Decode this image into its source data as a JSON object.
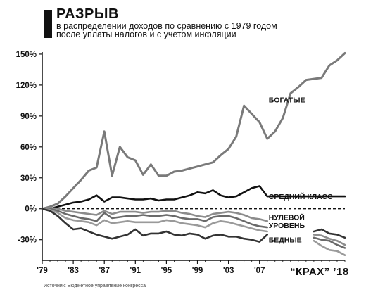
{
  "header": {
    "title": "РАЗРЫВ",
    "subtitle_line1": "в распределении доходов по сравнению с 1979 годом",
    "subtitle_line2": "после уплаты налогов и с учетом инфляции"
  },
  "footer": {
    "source": "Источник: Бюджетное управление конгресса",
    "brand": "“КРАХ” ’18"
  },
  "colors": {
    "axis": "#111111",
    "rich": "#7a7a7a",
    "middle": "#111111",
    "poor": "#333333",
    "gray1": "#8c8c8c",
    "gray2": "#6a6a6a",
    "gray3": "#9a9a9a"
  },
  "chart_data": {
    "type": "line",
    "x_ticks": [
      "'79",
      "'83",
      "'87",
      "'91",
      "'95",
      "'99",
      "'03",
      "'07"
    ],
    "x_tick_values": [
      1979,
      1983,
      1987,
      1991,
      1995,
      1999,
      2003,
      2007
    ],
    "xlim": [
      1979,
      2018
    ],
    "y_ticks": [
      "150%",
      "120%",
      "90%",
      "60%",
      "30%",
      "0%",
      "-30%"
    ],
    "y_tick_values": [
      150,
      120,
      90,
      60,
      30,
      0,
      -30
    ],
    "ylim": [
      -50,
      152
    ],
    "zero_line_label": "НУЛЕВОЙ УРОВЕНЬ",
    "series": [
      {
        "name": "БОГАТЫЕ",
        "color": "#7a7a7a",
        "x": [
          1979,
          1980,
          1981,
          1982,
          1983,
          1984,
          1985,
          1986,
          1987,
          1988,
          1989,
          1990,
          1991,
          1992,
          1993,
          1994,
          1995,
          1996,
          1997,
          1998,
          1999,
          2000,
          2001,
          2002,
          2003,
          2004,
          2005,
          2006,
          2007,
          2008,
          2009,
          2010,
          2011,
          2012,
          2013,
          2014,
          2015,
          2016,
          2017,
          2018
        ],
        "y": [
          0,
          2,
          5,
          12,
          20,
          28,
          37,
          40,
          75,
          32,
          60,
          50,
          47,
          33,
          43,
          32,
          32,
          36,
          37,
          39,
          41,
          43,
          45,
          52,
          58,
          70,
          100,
          92,
          84,
          68,
          75,
          88,
          112,
          118,
          125,
          126,
          127,
          139,
          144,
          151
        ]
      },
      {
        "name": "СРЕДНИЙ КЛАСС",
        "color": "#111111",
        "x": [
          1979,
          1980,
          1981,
          1982,
          1983,
          1984,
          1985,
          1986,
          1987,
          1988,
          1989,
          1990,
          1991,
          1992,
          1993,
          1994,
          1995,
          1996,
          1997,
          1998,
          1999,
          2000,
          2001,
          2002,
          2003,
          2004,
          2005,
          2006,
          2007,
          2008,
          2018
        ],
        "y": [
          0,
          0,
          2,
          4,
          6,
          7,
          9,
          13,
          7,
          11,
          11,
          10,
          9,
          9,
          10,
          8,
          9,
          9,
          11,
          13,
          16,
          15,
          18,
          13,
          11,
          12,
          16,
          20,
          22,
          12,
          12
        ]
      },
      {
        "name": "",
        "color": "#8c8c8c",
        "x": [
          1979,
          1980,
          1981,
          1982,
          1983,
          1984,
          1985,
          1986,
          1987,
          1988,
          1989,
          1990,
          1991,
          1992,
          1993,
          1994,
          1995,
          1996,
          1997,
          1998,
          1999,
          2000,
          2001,
          2002,
          2003,
          2004,
          2005,
          2006,
          2007,
          2008
        ],
        "y": [
          0,
          1,
          0,
          -2,
          -3,
          -4,
          -5,
          -6,
          -2,
          -5,
          -3,
          -3,
          -3,
          -4,
          -3,
          -3,
          -2,
          -2,
          -4,
          -5,
          -7,
          -8,
          -5,
          -4,
          -3,
          -4,
          -6,
          -9,
          -10,
          -12
        ]
      },
      {
        "name": "",
        "color": "#6a6a6a",
        "x": [
          1979,
          1980,
          1981,
          1982,
          1983,
          1984,
          1985,
          1986,
          1987,
          1988,
          1989,
          1990,
          1991,
          1992,
          1993,
          1994,
          1995,
          1996,
          1997,
          1998,
          1999,
          2000,
          2001,
          2002,
          2003,
          2004,
          2005,
          2006,
          2007,
          2008
        ],
        "y": [
          0,
          0,
          -2,
          -5,
          -7,
          -9,
          -10,
          -12,
          -4,
          -9,
          -8,
          -7,
          -7,
          -6,
          -7,
          -7,
          -6,
          -7,
          -9,
          -10,
          -10,
          -12,
          -8,
          -7,
          -7,
          -9,
          -12,
          -15,
          -17,
          -18
        ]
      },
      {
        "name": "",
        "color": "#9a9a9a",
        "x": [
          1979,
          1980,
          1981,
          1982,
          1983,
          1984,
          1985,
          1986,
          1987,
          1988,
          1989,
          1990,
          1991,
          1992,
          1993,
          1994,
          1995,
          1996,
          1997,
          1998,
          1999,
          2000,
          2001,
          2002,
          2003,
          2004,
          2005,
          2006,
          2007,
          2008
        ],
        "y": [
          0,
          -1,
          -4,
          -9,
          -11,
          -12,
          -13,
          -16,
          -11,
          -14,
          -13,
          -12,
          -13,
          -13,
          -13,
          -13,
          -11,
          -12,
          -14,
          -15,
          -16,
          -18,
          -14,
          -12,
          -13,
          -15,
          -17,
          -19,
          -21,
          -22
        ]
      },
      {
        "name": "БЕДНЫЕ",
        "color": "#333333",
        "x": [
          1979,
          1980,
          1981,
          1982,
          1983,
          1984,
          1985,
          1986,
          1987,
          1988,
          1989,
          1990,
          1991,
          1992,
          1993,
          1994,
          1995,
          1996,
          1997,
          1998,
          1999,
          2000,
          2001,
          2002,
          2003,
          2004,
          2005,
          2006,
          2007,
          2008
        ],
        "y": [
          0,
          -2,
          -7,
          -14,
          -20,
          -19,
          -22,
          -25,
          -27,
          -29,
          -27,
          -25,
          -20,
          -26,
          -24,
          -24,
          -22,
          -25,
          -26,
          -24,
          -25,
          -29,
          -26,
          -25,
          -27,
          -27,
          -29,
          -30,
          -32,
          -25
        ]
      },
      {
        "name": "",
        "color": "#333333",
        "x": [
          2014,
          2015,
          2016,
          2017,
          2018
        ],
        "y": [
          -22,
          -20,
          -24,
          -25,
          -28
        ]
      },
      {
        "name": "",
        "color": "#8c8c8c",
        "x": [
          2014,
          2015,
          2016,
          2017,
          2018
        ],
        "y": [
          -25,
          -26,
          -29,
          -31,
          -35
        ]
      },
      {
        "name": "",
        "color": "#6a6a6a",
        "x": [
          2014,
          2015,
          2016,
          2017,
          2018
        ],
        "y": [
          -28,
          -30,
          -31,
          -35,
          -38
        ]
      },
      {
        "name": "",
        "color": "#9a9a9a",
        "x": [
          2014,
          2015,
          2016,
          2017,
          2018
        ],
        "y": [
          -31,
          -36,
          -40,
          -41,
          -45
        ]
      }
    ],
    "annotations": [
      {
        "text": "БОГАТЫЕ",
        "x": 2008,
        "y": 106
      },
      {
        "text": "СРЕДНИЙ КЛАСС",
        "x": 2008,
        "y": 12
      },
      {
        "text": "НУЛЕВОЙ",
        "x": 2008,
        "y": -8
      },
      {
        "text": "УРОВЕНЬ",
        "x": 2008,
        "y": -16
      },
      {
        "text": "БЕДНЫЕ",
        "x": 2008,
        "y": -30
      }
    ]
  }
}
